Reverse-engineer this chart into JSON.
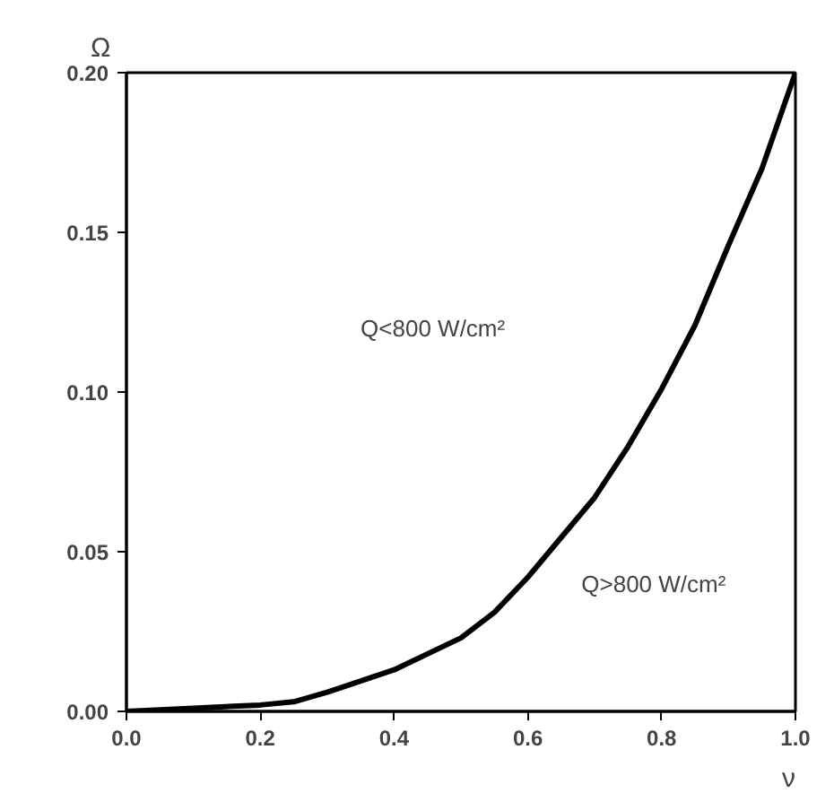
{
  "chart_data": {
    "type": "line",
    "xlabel": "ν",
    "ylabel": "Ω",
    "x": [
      0.0,
      0.1,
      0.2,
      0.25,
      0.3,
      0.4,
      0.5,
      0.55,
      0.6,
      0.65,
      0.7,
      0.75,
      0.8,
      0.85,
      0.9,
      0.95,
      1.0
    ],
    "series": [
      {
        "color": "#000000",
        "values": [
          0.0,
          0.001,
          0.002,
          0.003,
          0.006,
          0.013,
          0.023,
          0.031,
          0.042,
          0.0545,
          0.067,
          0.083,
          0.101,
          0.121,
          0.146,
          0.17,
          0.2
        ]
      }
    ],
    "xlim": [
      0.0,
      1.0
    ],
    "ylim": [
      0.0,
      0.2
    ],
    "xticks": [
      {
        "value": 0,
        "label": "0.0"
      },
      0.2,
      0.4,
      0.6,
      0.8,
      {
        "value": 1,
        "label": "1.0"
      }
    ],
    "yticks": [
      {
        "value": 0,
        "label": "0.00"
      },
      0.05,
      {
        "value": 0.1,
        "label": "0.10"
      },
      0.15,
      {
        "value": 0.2,
        "label": "0.20"
      }
    ],
    "annotations": [
      "Q<800 W/cm²",
      "Q>800 W/cm²"
    ],
    "grid": false,
    "marker": "none",
    "line_style": "solid"
  }
}
